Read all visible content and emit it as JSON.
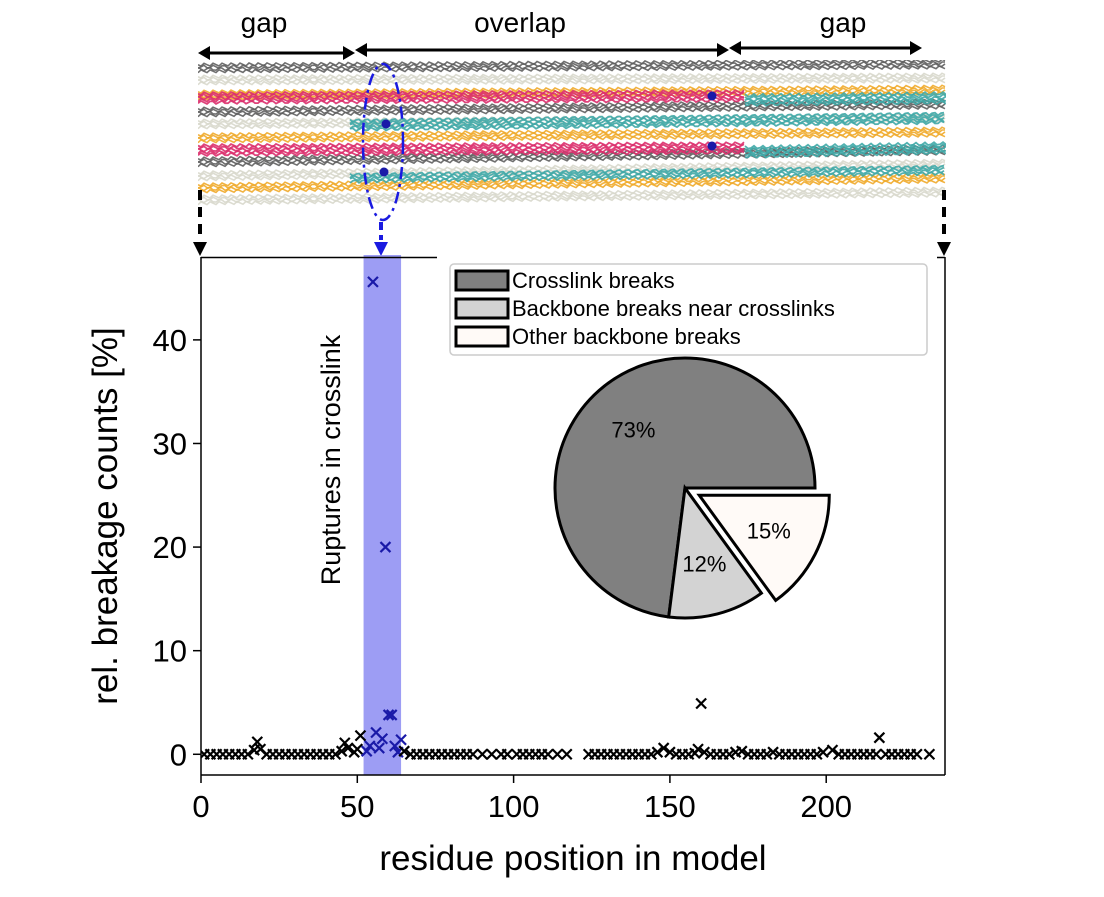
{
  "header": {
    "gap_left": "gap",
    "overlap": "overlap",
    "gap_right": "gap"
  },
  "colors": {
    "pink": "#dc2f6d",
    "teal": "#3fa9a7",
    "orange": "#f0aa2a",
    "dark_gray": "#5f5f5f",
    "light_gray": "#d8d8cc",
    "highlight": "#7c7cf0",
    "highlight_text": "#3a32e6",
    "crosslink_marker": "#1a1aa8"
  },
  "chart_data": {
    "type": "scatter",
    "xlabel": "residue position in model",
    "ylabel": "rel. breakage counts [%]",
    "xlim": [
      0,
      238
    ],
    "ylim": [
      -2,
      48
    ],
    "xticks": [
      0,
      50,
      100,
      150,
      200
    ],
    "yticks": [
      0,
      10,
      20,
      30,
      40
    ],
    "highlight": {
      "x_range": [
        52,
        64
      ],
      "label": "Ruptures in crosslink"
    },
    "series": [
      {
        "marker": "x",
        "points": [
          [
            1,
            0
          ],
          [
            3,
            0
          ],
          [
            5,
            0
          ],
          [
            7,
            0
          ],
          [
            9,
            0
          ],
          [
            11,
            0
          ],
          [
            13,
            0
          ],
          [
            15,
            0
          ],
          [
            17,
            0.4
          ],
          [
            18,
            1.2
          ],
          [
            19,
            0.5
          ],
          [
            21,
            0
          ],
          [
            23,
            0
          ],
          [
            25,
            0
          ],
          [
            27,
            0
          ],
          [
            29,
            0
          ],
          [
            31,
            0
          ],
          [
            33,
            0
          ],
          [
            35,
            0
          ],
          [
            37,
            0
          ],
          [
            39,
            0
          ],
          [
            41,
            0
          ],
          [
            43,
            0
          ],
          [
            45,
            0.3
          ],
          [
            46,
            1.1
          ],
          [
            47,
            0.6
          ],
          [
            49,
            0.2
          ],
          [
            50,
            0.5
          ],
          [
            51,
            1.8
          ],
          [
            53,
            0.3
          ],
          [
            54,
            0.8
          ],
          [
            55,
            45.6
          ],
          [
            56,
            2.1
          ],
          [
            57,
            0.6
          ],
          [
            58,
            1.5
          ],
          [
            59,
            20
          ],
          [
            60,
            3.8
          ],
          [
            61,
            3.8
          ],
          [
            62,
            0.8
          ],
          [
            63,
            0.2
          ],
          [
            64,
            1.4
          ],
          [
            65,
            0.3
          ],
          [
            67,
            0
          ],
          [
            69,
            0
          ],
          [
            71,
            0
          ],
          [
            73,
            0
          ],
          [
            75,
            0
          ],
          [
            77,
            0
          ],
          [
            79,
            0
          ],
          [
            81,
            0
          ],
          [
            83,
            0
          ],
          [
            85,
            0
          ],
          [
            87,
            0
          ],
          [
            90,
            0
          ],
          [
            93,
            0
          ],
          [
            96,
            0
          ],
          [
            98,
            0
          ],
          [
            101,
            0
          ],
          [
            103,
            0
          ],
          [
            105,
            0
          ],
          [
            107,
            0
          ],
          [
            109,
            0
          ],
          [
            111,
            0
          ],
          [
            114,
            0
          ],
          [
            117,
            0
          ],
          [
            124,
            0
          ],
          [
            126,
            0
          ],
          [
            128,
            0
          ],
          [
            130,
            0
          ],
          [
            132,
            0
          ],
          [
            134,
            0
          ],
          [
            136,
            0
          ],
          [
            138,
            0
          ],
          [
            140,
            0
          ],
          [
            142,
            0
          ],
          [
            144,
            0
          ],
          [
            146,
            0.2
          ],
          [
            148,
            0.6
          ],
          [
            150,
            0.2
          ],
          [
            152,
            0
          ],
          [
            154,
            0
          ],
          [
            156,
            0
          ],
          [
            158,
            0.1
          ],
          [
            159,
            0.5
          ],
          [
            160,
            4.9
          ],
          [
            161,
            0.2
          ],
          [
            163,
            0
          ],
          [
            165,
            0
          ],
          [
            167,
            0
          ],
          [
            169,
            0
          ],
          [
            171,
            0.2
          ],
          [
            173,
            0.3
          ],
          [
            175,
            0
          ],
          [
            177,
            0
          ],
          [
            179,
            0
          ],
          [
            181,
            0
          ],
          [
            183,
            0.2
          ],
          [
            185,
            0
          ],
          [
            187,
            0
          ],
          [
            189,
            0
          ],
          [
            191,
            0
          ],
          [
            193,
            0
          ],
          [
            195,
            0
          ],
          [
            197,
            0
          ],
          [
            199,
            0.2
          ],
          [
            202,
            0.4
          ],
          [
            204,
            0
          ],
          [
            206,
            0
          ],
          [
            208,
            0
          ],
          [
            210,
            0
          ],
          [
            212,
            0
          ],
          [
            214,
            0
          ],
          [
            216,
            0
          ],
          [
            217,
            1.6
          ],
          [
            219,
            0
          ],
          [
            221,
            0
          ],
          [
            223,
            0
          ],
          [
            225,
            0
          ],
          [
            227,
            0
          ],
          [
            229,
            0
          ],
          [
            233,
            0
          ]
        ]
      }
    ],
    "inset_pie": {
      "type": "pie",
      "slices": [
        {
          "label": "Crosslink breaks",
          "value": 73,
          "pct_label": "73%",
          "color": "#808080",
          "explode": false
        },
        {
          "label": "Backbone breaks near crosslinks",
          "value": 12,
          "pct_label": "12%",
          "color": "#d3d3d3",
          "explode": false
        },
        {
          "label": "Other backbone breaks",
          "value": 15,
          "pct_label": "15%",
          "color": "#fffaf7",
          "explode": true
        }
      ],
      "legend_placement": "top-right"
    }
  }
}
